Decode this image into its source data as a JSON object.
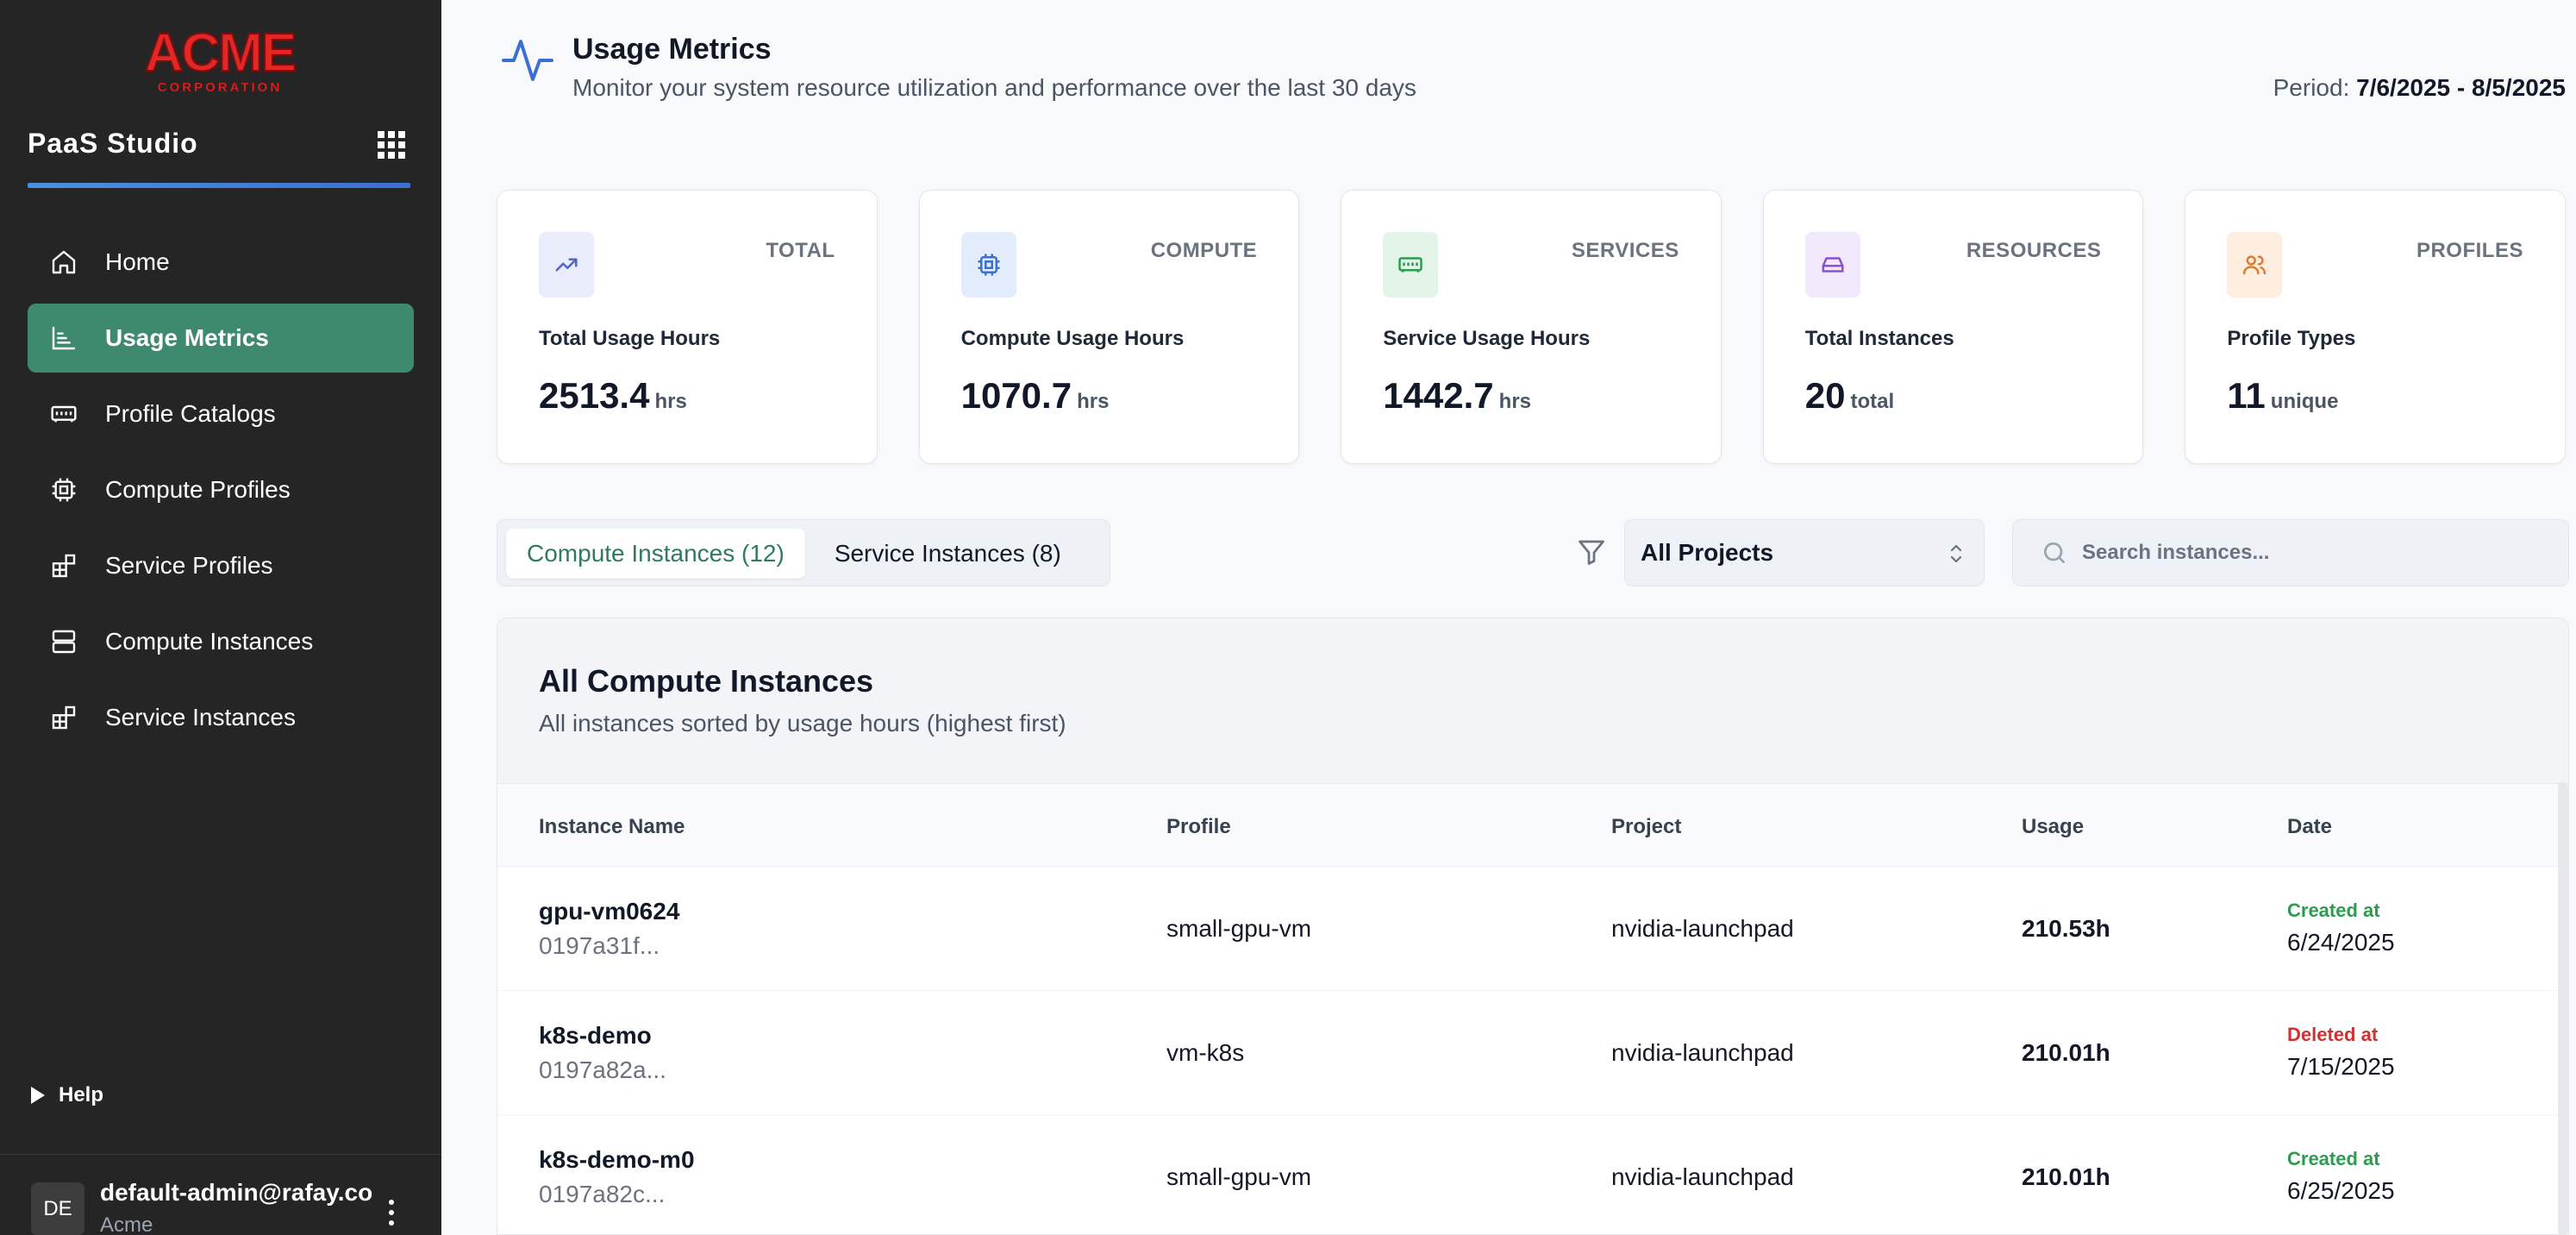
{
  "sidebar": {
    "logo_text": "ACME CORPORATION",
    "app_title": "PaaS Studio",
    "items": [
      {
        "label": "Home",
        "icon": "home-icon"
      },
      {
        "label": "Usage Metrics",
        "icon": "chart-icon",
        "active": true
      },
      {
        "label": "Profile Catalogs",
        "icon": "memory-icon"
      },
      {
        "label": "Compute Profiles",
        "icon": "cpu-icon"
      },
      {
        "label": "Service Profiles",
        "icon": "blocks-icon"
      },
      {
        "label": "Compute Instances",
        "icon": "server-icon"
      },
      {
        "label": "Service Instances",
        "icon": "blocks-icon"
      }
    ],
    "help_label": "Help",
    "user": {
      "initials": "DE",
      "email": "default-admin@rafay.co",
      "org": "Acme"
    }
  },
  "header": {
    "title": "Usage Metrics",
    "subtitle": "Monitor your system resource utilization and performance over the last 30 days",
    "period_label": "Period:",
    "period_value": "7/6/2025 - 8/5/2025"
  },
  "cards": [
    {
      "category": "TOTAL",
      "label": "Total Usage Hours",
      "value": "2513.4",
      "unit": "hrs",
      "icon": "trending-up-icon",
      "color": "#4f63d2"
    },
    {
      "category": "COMPUTE",
      "label": "Compute Usage Hours",
      "value": "1070.7",
      "unit": "hrs",
      "icon": "cpu-icon",
      "color": "#3b6fd4"
    },
    {
      "category": "SERVICES",
      "label": "Service Usage Hours",
      "value": "1442.7",
      "unit": "hrs",
      "icon": "memory-icon",
      "color": "#2e9b4f"
    },
    {
      "category": "RESOURCES",
      "label": "Total Instances",
      "value": "20",
      "unit": "total",
      "icon": "drive-icon",
      "color": "#8b4fd2"
    },
    {
      "category": "PROFILES",
      "label": "Profile Types",
      "value": "11",
      "unit": "unique",
      "icon": "users-icon",
      "color": "#e07a2e"
    }
  ],
  "tabs": [
    {
      "label": "Compute Instances (12)",
      "active": true
    },
    {
      "label": "Service Instances (8)",
      "active": false
    }
  ],
  "filter": {
    "selected": "All Projects"
  },
  "search": {
    "placeholder": "Search instances..."
  },
  "table": {
    "title": "All Compute Instances",
    "subtitle": "All instances sorted by usage hours (highest first)",
    "columns": [
      "Instance Name",
      "Profile",
      "Project",
      "Usage",
      "Date"
    ],
    "rows": [
      {
        "name": "gpu-vm0624",
        "id": "0197a31f...",
        "profile": "small-gpu-vm",
        "project": "nvidia-launchpad",
        "usage": "210.53h",
        "status": "Created at",
        "date": "6/24/2025"
      },
      {
        "name": "k8s-demo",
        "id": "0197a82a...",
        "profile": "vm-k8s",
        "project": "nvidia-launchpad",
        "usage": "210.01h",
        "status": "Deleted at",
        "date": "7/15/2025"
      },
      {
        "name": "k8s-demo-m0",
        "id": "0197a82c...",
        "profile": "small-gpu-vm",
        "project": "nvidia-launchpad",
        "usage": "210.01h",
        "status": "Created at",
        "date": "6/25/2025"
      }
    ]
  }
}
